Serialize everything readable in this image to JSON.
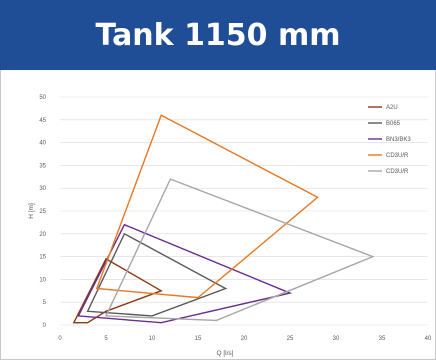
{
  "header": {
    "title": "Tank 1150 mm"
  },
  "colors": {
    "header_bg": "#1f4e96",
    "header_text": "#ffffff",
    "grid": "#d9d9d9"
  },
  "chart_data": {
    "type": "line",
    "title": "",
    "xlabel": "Q [l/s]",
    "ylabel": "H [m]",
    "xlim": [
      0,
      40
    ],
    "ylim": [
      0,
      50
    ],
    "xticks": [
      0,
      5,
      10,
      15,
      20,
      25,
      30,
      35,
      40
    ],
    "yticks": [
      0,
      5,
      10,
      15,
      20,
      25,
      30,
      35,
      40,
      45,
      50
    ],
    "grid": "horizontal",
    "legend_position": "top-right",
    "series": [
      {
        "name": "A2U",
        "color": "#8b3a0f",
        "points": [
          [
            1.5,
            0.5
          ],
          [
            5,
            14.5
          ],
          [
            11,
            7.5
          ],
          [
            5,
            3
          ],
          [
            3,
            0.5
          ]
        ]
      },
      {
        "name": "B065",
        "color": "#595959",
        "points": [
          [
            3,
            3
          ],
          [
            7,
            20
          ],
          [
            18,
            8
          ],
          [
            10,
            2
          ]
        ]
      },
      {
        "name": "BN3/BK3",
        "color": "#6a2c91",
        "points": [
          [
            2,
            2
          ],
          [
            7,
            22
          ],
          [
            25,
            7
          ],
          [
            11,
            0.5
          ]
        ]
      },
      {
        "name": "CD3U/R",
        "color": "#e87722",
        "points": [
          [
            11,
            46
          ],
          [
            28,
            28
          ],
          [
            15,
            6
          ],
          [
            4,
            8
          ]
        ]
      },
      {
        "name": "CD3U/R",
        "color": "#a6a6a6",
        "points": [
          [
            5,
            2
          ],
          [
            12,
            32
          ],
          [
            34,
            15
          ],
          [
            17,
            1
          ]
        ]
      }
    ]
  }
}
